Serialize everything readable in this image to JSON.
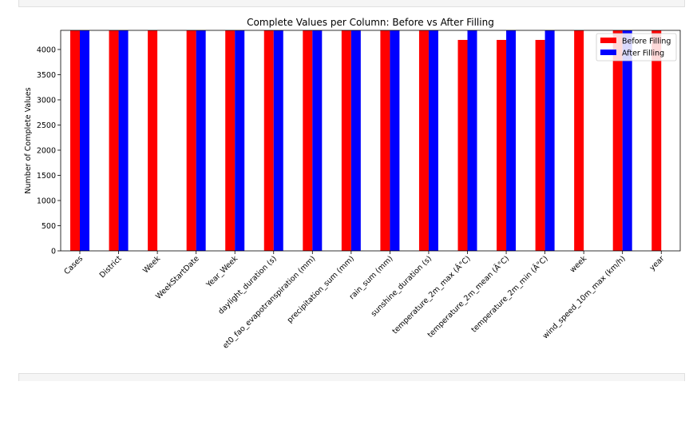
{
  "chart_data": {
    "type": "bar",
    "title": "Complete Values per Column: Before vs After Filling",
    "xlabel": "",
    "ylabel": "Number of Complete Values",
    "ylim": [
      0,
      4380
    ],
    "yticks": [
      0,
      500,
      1000,
      1500,
      2000,
      2500,
      3000,
      3500,
      4000
    ],
    "grid": false,
    "legend_position": "top-right",
    "categories": [
      "Cases",
      "District",
      "Week",
      "WeekStartDate",
      "Year_Week",
      "daylight_duration (s)",
      "et0_fao_evapotranspiration (mm)",
      "precipitation_sum (mm)",
      "rain_sum (mm)",
      "sunshine_duration (s)",
      "temperature_2m_max (Â°C)",
      "temperature_2m_mean (Â°C)",
      "temperature_2m_min (Â°C)",
      "week",
      "wind_speed_10m_max (km/h)",
      "year"
    ],
    "series": [
      {
        "name": "Before Filling",
        "color": "#ff0000",
        "values": [
          4380,
          4380,
          4380,
          4380,
          4380,
          4380,
          4380,
          4380,
          4380,
          4380,
          4190,
          4190,
          4190,
          4380,
          4380,
          4380
        ]
      },
      {
        "name": "After Filling",
        "color": "#0000ff",
        "values": [
          4380,
          4380,
          null,
          4380,
          4380,
          4380,
          4380,
          4380,
          4380,
          4380,
          4380,
          4380,
          4380,
          null,
          4380,
          null
        ]
      }
    ]
  }
}
